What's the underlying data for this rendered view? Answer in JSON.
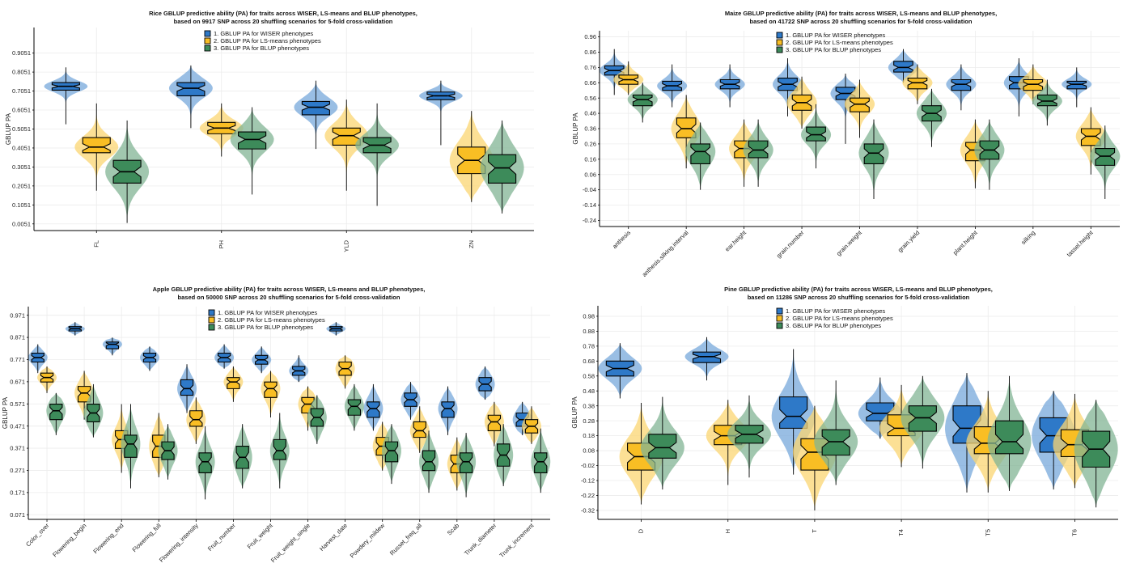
{
  "palette": {
    "wiser": "#2E79C8",
    "lsm": "#F9BE24",
    "blup": "#3D8B5A"
  },
  "chart_data": [
    {
      "type": "violin-box",
      "title": [
        "Rice GBLUP predictive ability (PA) for traits across WISER, LS-means and BLUP phenotypes,",
        "based on 9917 SNP across 20 shuffling scenarios for 5-fold cross-validation"
      ],
      "ylabel": "GBLUP PA",
      "ylim": [
        -0.03,
        1.04
      ],
      "yticks": [
        0.0051,
        0.1051,
        0.2051,
        0.3051,
        0.4051,
        0.5051,
        0.6051,
        0.7051,
        0.8051,
        0.9051
      ],
      "ytick_labels": [
        "0.0051",
        "0.1051",
        "0.2051",
        "0.3051",
        "0.4051",
        "0.5051",
        "0.6051",
        "0.7051",
        "0.8051",
        "0.9051"
      ],
      "rotate_x": false,
      "legend": [
        "1. GBLUP PA for WISER phenotypes",
        "2. GBLUP PA for LS-means phenotypes",
        "3. GBLUP PA for BLUP phenotypes"
      ],
      "categories": [
        "FL",
        "PH",
        "YLD",
        "ZN"
      ],
      "series": [
        {
          "key": "wiser",
          "values": [
            [
              0.53,
              0.71,
              0.73,
              0.75,
              0.83
            ],
            [
              0.51,
              0.68,
              0.72,
              0.75,
              0.84
            ],
            [
              0.4,
              0.58,
              0.62,
              0.65,
              0.76
            ],
            [
              0.42,
              0.66,
              0.68,
              0.7,
              0.76
            ]
          ]
        },
        {
          "key": "lsm",
          "values": [
            [
              0.18,
              0.38,
              0.41,
              0.46,
              0.64
            ],
            [
              0.36,
              0.48,
              0.51,
              0.54,
              0.64
            ],
            [
              0.18,
              0.42,
              0.47,
              0.51,
              0.66
            ],
            [
              0.12,
              0.27,
              0.34,
              0.41,
              0.6
            ]
          ]
        },
        {
          "key": "blup",
          "values": [
            [
              0.01,
              0.22,
              0.28,
              0.34,
              0.55
            ],
            [
              0.16,
              0.4,
              0.45,
              0.49,
              0.62
            ],
            [
              0.1,
              0.38,
              0.42,
              0.46,
              0.64
            ],
            [
              0.06,
              0.22,
              0.3,
              0.37,
              0.55
            ]
          ]
        }
      ]
    },
    {
      "type": "violin-box",
      "title": [
        "Maize GBLUP predictive ability (PA) for traits across WISER, LS-means and BLUP phenotypes,",
        "based on 41722 SNP across 20 shuffling scenarios for 5-fold cross-validation"
      ],
      "ylabel": "GBLUP PA",
      "ylim": [
        -0.28,
        1.0
      ],
      "yticks": [
        -0.24,
        -0.14,
        -0.04,
        0.06,
        0.16,
        0.26,
        0.36,
        0.46,
        0.56,
        0.66,
        0.76,
        0.86,
        0.96
      ],
      "ytick_labels": [
        "-0.24",
        "-0.14",
        "-0.04",
        "0.06",
        "0.16",
        "0.26",
        "0.36",
        "0.46",
        "0.56",
        "0.66",
        "0.76",
        "0.86",
        "0.96"
      ],
      "rotate_x": true,
      "legend": [
        "1. GBLUP PA for WISER phenotypes",
        "2. GBLUP PA for LS-means phenotypes",
        "3. GBLUP PA for BLUP phenotypes"
      ],
      "categories": [
        "anthesis",
        "anthesis.silking.interval",
        "ear.height",
        "grain.number",
        "grain.weight",
        "grain.yield",
        "plant.height",
        "silking",
        "tassel.height"
      ],
      "series": [
        {
          "key": "wiser",
          "values": [
            [
              0.58,
              0.71,
              0.74,
              0.77,
              0.88
            ],
            [
              0.5,
              0.61,
              0.64,
              0.67,
              0.78
            ],
            [
              0.5,
              0.62,
              0.65,
              0.68,
              0.78
            ],
            [
              0.44,
              0.61,
              0.65,
              0.69,
              0.82
            ],
            [
              0.26,
              0.55,
              0.59,
              0.63,
              0.72
            ],
            [
              0.66,
              0.73,
              0.76,
              0.8,
              0.88
            ],
            [
              0.48,
              0.61,
              0.65,
              0.68,
              0.78
            ],
            [
              0.44,
              0.62,
              0.66,
              0.7,
              0.82
            ],
            [
              0.5,
              0.62,
              0.65,
              0.67,
              0.76
            ]
          ]
        },
        {
          "key": "lsm",
          "values": [
            [
              0.58,
              0.65,
              0.68,
              0.71,
              0.8
            ],
            [
              0.1,
              0.3,
              0.36,
              0.43,
              0.58
            ],
            [
              -0.02,
              0.17,
              0.23,
              0.28,
              0.42
            ],
            [
              0.36,
              0.48,
              0.53,
              0.58,
              0.7
            ],
            [
              0.3,
              0.47,
              0.52,
              0.56,
              0.68
            ],
            [
              0.52,
              0.62,
              0.66,
              0.69,
              0.78
            ],
            [
              -0.03,
              0.15,
              0.22,
              0.27,
              0.42
            ],
            [
              0.52,
              0.61,
              0.65,
              0.68,
              0.78
            ],
            [
              0.06,
              0.25,
              0.31,
              0.36,
              0.5
            ]
          ]
        },
        {
          "key": "blup",
          "values": [
            [
              0.4,
              0.51,
              0.55,
              0.58,
              0.66
            ],
            [
              -0.04,
              0.13,
              0.21,
              0.26,
              0.4
            ],
            [
              -0.02,
              0.17,
              0.22,
              0.28,
              0.42
            ],
            [
              0.1,
              0.28,
              0.32,
              0.37,
              0.52
            ],
            [
              -0.1,
              0.13,
              0.2,
              0.26,
              0.42
            ],
            [
              0.24,
              0.41,
              0.46,
              0.51,
              0.62
            ],
            [
              -0.04,
              0.16,
              0.22,
              0.28,
              0.42
            ],
            [
              0.38,
              0.51,
              0.54,
              0.58,
              0.68
            ],
            [
              -0.1,
              0.12,
              0.18,
              0.23,
              0.38
            ]
          ]
        }
      ]
    },
    {
      "type": "violin-box",
      "title": [
        "Apple GBLUP predictive ability (PA) for traits across WISER, LS-means and BLUP phenotypes,",
        "based on 50000 SNP across 20 shuffling scenarios for 5-fold cross-validation"
      ],
      "ylabel": "GBLUP PA",
      "ylim": [
        0.05,
        1.01
      ],
      "yticks": [
        0.071,
        0.171,
        0.271,
        0.371,
        0.471,
        0.571,
        0.671,
        0.771,
        0.871,
        0.971
      ],
      "ytick_labels": [
        "0.071",
        "0.171",
        "0.271",
        "0.371",
        "0.471",
        "0.571",
        "0.671",
        "0.771",
        "0.871",
        "0.971"
      ],
      "rotate_x": true,
      "legend": [
        "1. GBLUP PA for WISER phenotypes",
        "2. GBLUP PA for LS-means phenotypes",
        "3. GBLUP PA for BLUP phenotypes"
      ],
      "categories": [
        "Color_over",
        "Flowering_begin",
        "Flowering_end",
        "Flowering_full",
        "Flowering_intensity",
        "Fruit_number",
        "Fruit_weight",
        "Fruit_weight_single",
        "Harvest_date",
        "Powdery_mildew",
        "Russet_freq_all",
        "Scab",
        "Trunk_diameter",
        "Trunk_increment"
      ],
      "series": [
        {
          "key": "wiser",
          "values": [
            [
              0.71,
              0.76,
              0.78,
              0.8,
              0.84
            ],
            [
              0.88,
              0.9,
              0.91,
              0.92,
              0.94
            ],
            [
              0.79,
              0.82,
              0.84,
              0.85,
              0.87
            ],
            [
              0.72,
              0.76,
              0.78,
              0.8,
              0.83
            ],
            [
              0.53,
              0.61,
              0.64,
              0.68,
              0.75
            ],
            [
              0.73,
              0.76,
              0.78,
              0.8,
              0.84
            ],
            [
              0.71,
              0.75,
              0.77,
              0.79,
              0.83
            ],
            [
              0.67,
              0.7,
              0.72,
              0.74,
              0.79
            ],
            [
              0.88,
              0.9,
              0.91,
              0.92,
              0.94
            ],
            [
              0.45,
              0.51,
              0.55,
              0.58,
              0.66
            ],
            [
              0.5,
              0.56,
              0.59,
              0.62,
              0.67
            ],
            [
              0.43,
              0.51,
              0.55,
              0.58,
              0.65
            ],
            [
              0.59,
              0.63,
              0.66,
              0.69,
              0.74
            ],
            [
              0.43,
              0.47,
              0.5,
              0.53,
              0.58
            ]
          ]
        },
        {
          "key": "lsm",
          "values": [
            [
              0.62,
              0.67,
              0.69,
              0.71,
              0.74
            ],
            [
              0.5,
              0.58,
              0.62,
              0.65,
              0.72
            ],
            [
              0.26,
              0.37,
              0.41,
              0.45,
              0.57
            ],
            [
              0.24,
              0.33,
              0.38,
              0.43,
              0.53
            ],
            [
              0.39,
              0.47,
              0.5,
              0.54,
              0.6
            ],
            [
              0.58,
              0.64,
              0.67,
              0.69,
              0.74
            ],
            [
              0.51,
              0.6,
              0.64,
              0.67,
              0.72
            ],
            [
              0.45,
              0.53,
              0.57,
              0.6,
              0.65
            ],
            [
              0.64,
              0.7,
              0.73,
              0.76,
              0.79
            ],
            [
              0.27,
              0.34,
              0.38,
              0.42,
              0.49
            ],
            [
              0.35,
              0.42,
              0.45,
              0.49,
              0.56
            ],
            [
              0.18,
              0.26,
              0.3,
              0.34,
              0.42
            ],
            [
              0.38,
              0.45,
              0.49,
              0.52,
              0.58
            ],
            [
              0.39,
              0.44,
              0.47,
              0.5,
              0.56
            ]
          ]
        },
        {
          "key": "blup",
          "values": [
            [
              0.43,
              0.5,
              0.54,
              0.57,
              0.62
            ],
            [
              0.42,
              0.49,
              0.53,
              0.57,
              0.66
            ],
            [
              0.19,
              0.33,
              0.39,
              0.43,
              0.57
            ],
            [
              0.23,
              0.32,
              0.36,
              0.4,
              0.48
            ],
            [
              0.14,
              0.26,
              0.31,
              0.35,
              0.47
            ],
            [
              0.19,
              0.28,
              0.33,
              0.38,
              0.48
            ],
            [
              0.19,
              0.32,
              0.36,
              0.41,
              0.53
            ],
            [
              0.39,
              0.47,
              0.51,
              0.55,
              0.61
            ],
            [
              0.45,
              0.52,
              0.56,
              0.59,
              0.66
            ],
            [
              0.21,
              0.31,
              0.36,
              0.4,
              0.48
            ],
            [
              0.17,
              0.27,
              0.31,
              0.36,
              0.45
            ],
            [
              0.15,
              0.26,
              0.31,
              0.35,
              0.44
            ],
            [
              0.2,
              0.29,
              0.34,
              0.39,
              0.48
            ],
            [
              0.17,
              0.26,
              0.31,
              0.35,
              0.46
            ]
          ]
        }
      ]
    },
    {
      "type": "violin-box",
      "title": [
        "Pine GBLUP predictive ability (PA) for traits across WISER, LS-means and BLUP phenotypes,",
        "based on 11286 SNP across 20 shuffling scenarios for 5-fold cross-validation"
      ],
      "ylabel": "GBLUP PA",
      "ylim": [
        -0.38,
        1.05
      ],
      "yticks": [
        -0.32,
        -0.22,
        -0.12,
        -0.02,
        0.08,
        0.18,
        0.28,
        0.38,
        0.48,
        0.58,
        0.68,
        0.78,
        0.88,
        0.98
      ],
      "ytick_labels": [
        "-0.32",
        "-0.22",
        "-0.12",
        "-0.02",
        "0.08",
        "0.18",
        "0.28",
        "0.38",
        "0.48",
        "0.58",
        "0.68",
        "0.78",
        "0.88",
        "0.98"
      ],
      "rotate_x": false,
      "legend": [
        "1. GBLUP PA for WISER phenotypes",
        "2. GBLUP PA for LS-means phenotypes",
        "3. GBLUP PA for BLUP phenotypes"
      ],
      "categories": [
        "D",
        "H",
        "T",
        "T4",
        "T5",
        "T6"
      ],
      "series": [
        {
          "key": "wiser",
          "values": [
            [
              0.43,
              0.58,
              0.63,
              0.68,
              0.8
            ],
            [
              0.55,
              0.67,
              0.71,
              0.74,
              0.84
            ],
            [
              -0.08,
              0.23,
              0.31,
              0.44,
              0.76
            ],
            [
              0.16,
              0.28,
              0.33,
              0.4,
              0.57
            ],
            [
              -0.2,
              0.13,
              0.23,
              0.38,
              0.6
            ],
            [
              -0.18,
              0.07,
              0.18,
              0.3,
              0.48
            ]
          ]
        },
        {
          "key": "lsm",
          "values": [
            [
              -0.28,
              -0.05,
              0.04,
              0.13,
              0.4
            ],
            [
              -0.15,
              0.12,
              0.18,
              0.25,
              0.42
            ],
            [
              -0.32,
              -0.05,
              0.07,
              0.16,
              0.38
            ],
            [
              -0.03,
              0.18,
              0.23,
              0.32,
              0.52
            ],
            [
              -0.2,
              0.06,
              0.13,
              0.24,
              0.48
            ],
            [
              -0.17,
              0.04,
              0.12,
              0.22,
              0.46
            ]
          ]
        },
        {
          "key": "blup",
          "values": [
            [
              -0.18,
              0.03,
              0.1,
              0.19,
              0.44
            ],
            [
              -0.1,
              0.13,
              0.19,
              0.25,
              0.45
            ],
            [
              -0.15,
              0.05,
              0.14,
              0.22,
              0.55
            ],
            [
              -0.04,
              0.21,
              0.3,
              0.38,
              0.58
            ],
            [
              -0.19,
              0.06,
              0.14,
              0.28,
              0.58
            ],
            [
              -0.3,
              -0.03,
              0.09,
              0.21,
              0.42
            ]
          ]
        }
      ]
    }
  ]
}
